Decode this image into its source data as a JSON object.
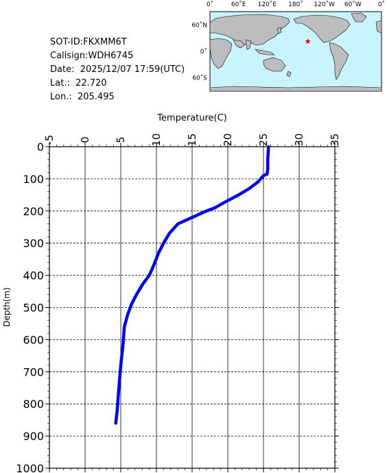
{
  "station": {
    "sot_id": "SOT-ID:FKXMM6T",
    "callsign": "Callsign:WDH6745",
    "date": "Date:  2025/12/07 17:59(UTC)",
    "lat": "Lat.:  22.720",
    "lon": "Lon.:  205.495"
  },
  "map": {
    "lon_labels": [
      "0˚",
      "60˚E",
      "120˚E",
      "180˚",
      "120˚W",
      "60˚W",
      "0˚"
    ],
    "lat_labels": [
      "60˚N",
      "0˚",
      "60˚S"
    ],
    "ocean_color": "#c8f4ff",
    "land_color": "#bdbdbd",
    "marker": {
      "lon": 205.495,
      "lat": 22.72,
      "color": "#ff0000",
      "symbol": "star"
    }
  },
  "chart_data": {
    "type": "line",
    "title": "",
    "xlabel": "Temperature(C)",
    "ylabel": "Depth(m)",
    "xlim": [
      -5,
      35
    ],
    "ylim": [
      1000,
      0
    ],
    "xticks": [
      -5,
      0,
      5,
      10,
      15,
      20,
      25,
      30,
      35
    ],
    "yticks": [
      0,
      100,
      200,
      300,
      400,
      500,
      600,
      700,
      800,
      900,
      1000
    ],
    "grid": true,
    "line_color": "#0000ff",
    "series": [
      {
        "x": [
          25.7,
          25.6,
          25.6,
          25.5,
          25.0,
          24.2,
          23.0,
          21.5,
          19.8,
          18.2,
          17.0,
          15.0,
          13.0,
          11.8,
          11.0,
          10.3,
          9.6,
          9.0,
          8.0,
          7.2,
          6.5,
          6.0,
          5.5,
          5.3,
          5.0,
          4.7,
          4.5,
          4.3
        ],
        "y": [
          0,
          40,
          70,
          85,
          90,
          110,
          130,
          150,
          170,
          190,
          200,
          220,
          240,
          270,
          300,
          330,
          370,
          400,
          430,
          460,
          490,
          520,
          560,
          620,
          680,
          760,
          820,
          860
        ]
      }
    ]
  }
}
